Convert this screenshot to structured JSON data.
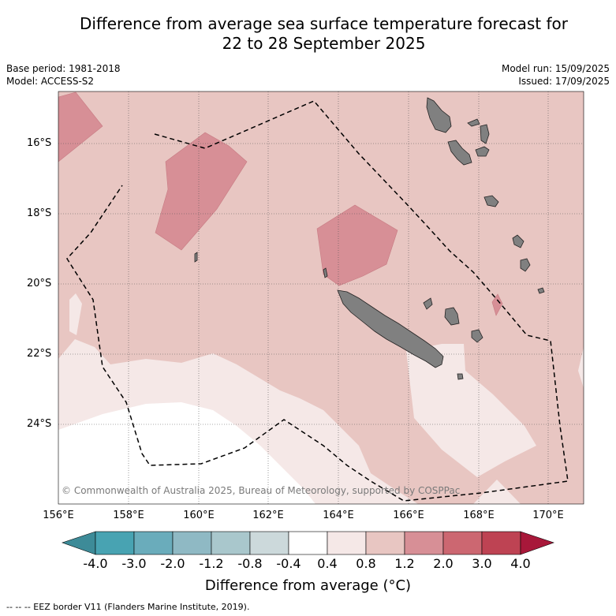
{
  "title_line1": "Difference from average sea surface temperature forecast for",
  "title_line2": "22 to 28 September 2025",
  "base_period": "Base period: 1981-2018",
  "model": "Model: ACCESS-S2",
  "model_run": "Model run: 15/09/2025",
  "issued": "Issued: 17/09/2025",
  "copyright": "© Commonwealth of Australia 2025, Bureau of Meteorology, supported by COSPPac",
  "lat_labels": [
    "16°S",
    "18°S",
    "20°S",
    "22°S",
    "24°S"
  ],
  "lon_labels": [
    "156°E",
    "158°E",
    "160°E",
    "162°E",
    "164°E",
    "166°E",
    "168°E",
    "170°E"
  ],
  "colorbar": {
    "labels": [
      "-4.0",
      "-3.0",
      "-2.0",
      "-1.2",
      "-0.8",
      "-0.4",
      "0.4",
      "0.8",
      "1.2",
      "2.0",
      "3.0",
      "4.0"
    ],
    "colors": [
      "#3d8b98",
      "#48a3b2",
      "#6aacbb",
      "#8fb9c4",
      "#a9c7cc",
      "#ccd9db",
      "#ffffff",
      "#f5e8e7",
      "#e8c6c2",
      "#d78f96",
      "#cc6771",
      "#be4353",
      "#a8183a"
    ],
    "title": "Difference from average (°C)"
  },
  "map": {
    "background_color": "#e8c6c2",
    "warm_color": "#d78f96",
    "light_color": "#f5e8e7",
    "land_color": "#808080"
  },
  "footer": "--  --  -- EEZ border V11 (Flanders Marine Institute, 2019)."
}
